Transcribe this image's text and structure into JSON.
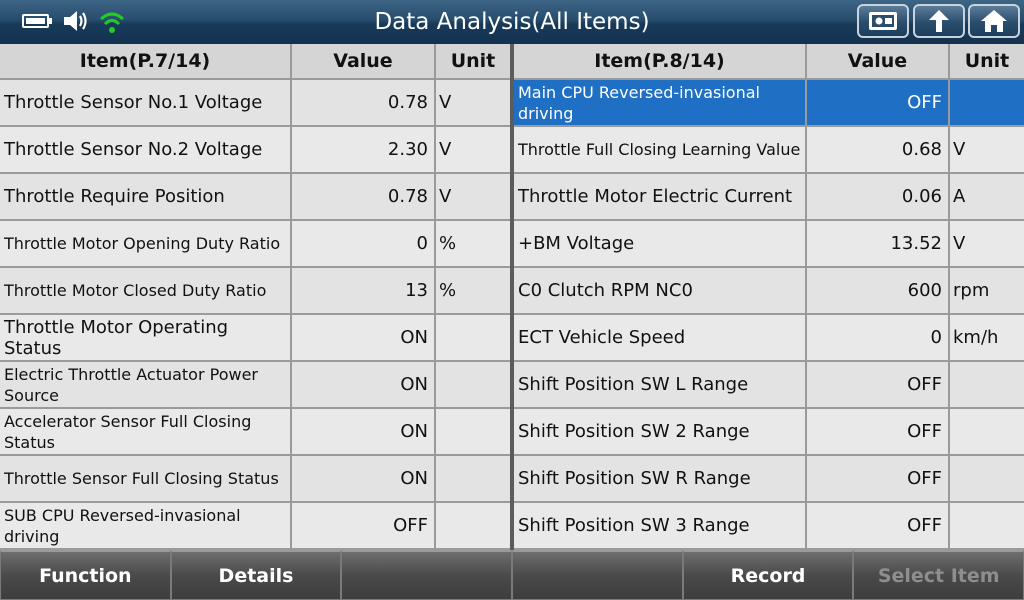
{
  "header": {
    "title": "Data Analysis(All Items)",
    "icons": [
      "battery-icon",
      "speaker-icon",
      "wifi-icon",
      "photo-icon",
      "back-arrow-icon",
      "home-icon"
    ]
  },
  "left_table": {
    "columns": [
      "Item(P.7/14)",
      "Value",
      "Unit"
    ],
    "rows": [
      {
        "item": "Throttle Sensor No.1 Voltage",
        "value": "0.78",
        "unit": "V"
      },
      {
        "item": "Throttle Sensor No.2 Voltage",
        "value": "2.30",
        "unit": "V"
      },
      {
        "item": "Throttle Require Position",
        "value": "0.78",
        "unit": "V"
      },
      {
        "item": "Throttle Motor Opening Duty Ratio",
        "value": "0",
        "unit": "%"
      },
      {
        "item": "Throttle Motor Closed Duty Ratio",
        "value": "13",
        "unit": "%"
      },
      {
        "item": "Throttle Motor Operating Status",
        "value": "ON",
        "unit": ""
      },
      {
        "item": "Electric Throttle Actuator Power Source",
        "value": "ON",
        "unit": ""
      },
      {
        "item": "Accelerator Sensor Full Closing Status",
        "value": "ON",
        "unit": ""
      },
      {
        "item": "Throttle Sensor Full Closing Status",
        "value": "ON",
        "unit": ""
      },
      {
        "item": "SUB CPU Reversed-invasional driving",
        "value": "OFF",
        "unit": ""
      }
    ]
  },
  "right_table": {
    "columns": [
      "Item(P.8/14)",
      "Value",
      "Unit"
    ],
    "rows": [
      {
        "item": "Main CPU Reversed-invasional driving",
        "value": "OFF",
        "unit": ""
      },
      {
        "item": "Throttle Full Closing Learning Value",
        "value": "0.68",
        "unit": "V"
      },
      {
        "item": "Throttle Motor Electric Current",
        "value": "0.06",
        "unit": "A"
      },
      {
        "item": "+BM Voltage",
        "value": "13.52",
        "unit": "V"
      },
      {
        "item": "C0 Clutch RPM NC0",
        "value": "600",
        "unit": "rpm"
      },
      {
        "item": "ECT Vehicle Speed",
        "value": "0",
        "unit": "km/h"
      },
      {
        "item": "Shift Position SW L Range",
        "value": "OFF",
        "unit": ""
      },
      {
        "item": "Shift Position SW 2 Range",
        "value": "OFF",
        "unit": ""
      },
      {
        "item": "Shift Position SW R Range",
        "value": "OFF",
        "unit": ""
      },
      {
        "item": "Shift Position SW 3 Range",
        "value": "OFF",
        "unit": ""
      }
    ]
  },
  "toolbar": {
    "function_label": "Function",
    "details_label": "Details",
    "record_label": "Record",
    "select_item_label": "Select Item"
  },
  "colors": {
    "title_bar": "#274d6d",
    "selected_row": "#1f6fc4",
    "wifi": "#22cc22"
  }
}
